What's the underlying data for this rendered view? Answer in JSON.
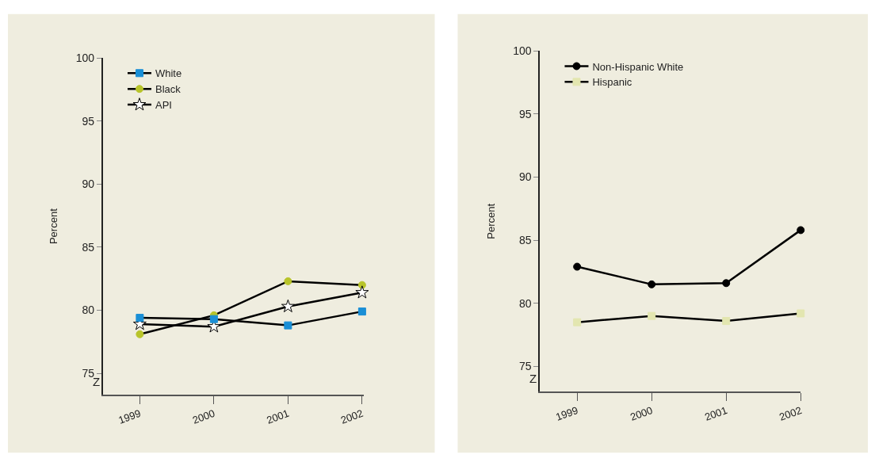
{
  "chart_data": [
    {
      "type": "line",
      "ylabel": "Percent",
      "categories": [
        "1999",
        "2000",
        "2001",
        "2002"
      ],
      "ylim": [
        73.3,
        100
      ],
      "yticks": [
        75,
        80,
        85,
        90,
        95,
        100
      ],
      "grid": false,
      "legend": "top left",
      "annotations": [
        "Z"
      ],
      "series": [
        {
          "name": "White",
          "color": "#1a8fd6",
          "marker": "square",
          "values": [
            79.4,
            79.3,
            78.8,
            79.9
          ]
        },
        {
          "name": "Black",
          "color": "#b8c42a",
          "marker": "circle",
          "values": [
            78.1,
            79.6,
            82.3,
            82.0
          ]
        },
        {
          "name": "API",
          "color": "#ffffff",
          "marker": "star",
          "values": [
            78.9,
            78.7,
            80.3,
            81.4
          ]
        }
      ]
    },
    {
      "type": "line",
      "ylabel": "Percent",
      "categories": [
        "1999",
        "2000",
        "2001",
        "2002"
      ],
      "ylim": [
        73.0,
        100
      ],
      "yticks": [
        75,
        80,
        85,
        90,
        95,
        100
      ],
      "grid": false,
      "legend": "top left",
      "annotations": [
        "Z"
      ],
      "series": [
        {
          "name": "Non-Hispanic White",
          "color": "#000000",
          "marker": "circle",
          "values": [
            82.9,
            81.5,
            81.6,
            85.8
          ]
        },
        {
          "name": "Hispanic",
          "color": "#e3e6b0",
          "marker": "square",
          "values": [
            78.5,
            79.0,
            78.6,
            79.2
          ]
        }
      ]
    }
  ]
}
